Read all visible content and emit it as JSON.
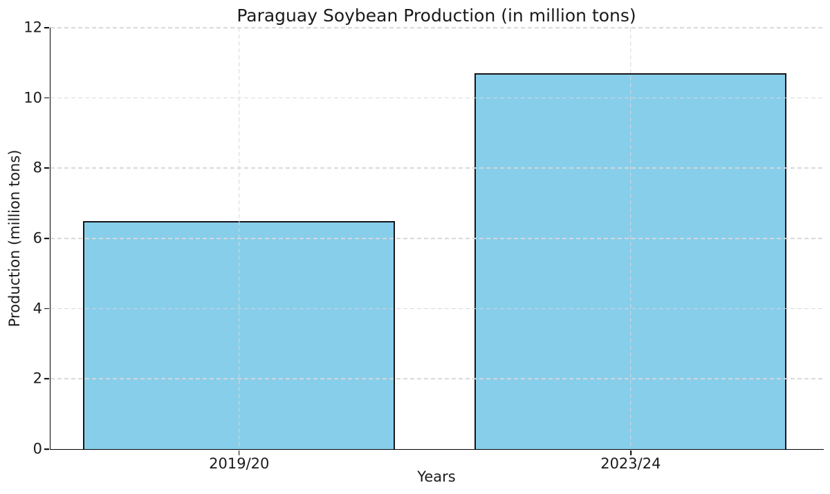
{
  "chart_data": {
    "type": "bar",
    "title": "Paraguay Soybean Production (in million tons)",
    "xlabel": "Years",
    "ylabel": "Production (million tons)",
    "categories": [
      "2019/20",
      "2023/24"
    ],
    "values": [
      6.5,
      10.7
    ],
    "ylim": [
      0,
      12
    ],
    "yticks": [
      0,
      2,
      4,
      6,
      8,
      10,
      12
    ],
    "grid": "dashed, horizontal and vertical, drawn over bars",
    "legend": "none",
    "colors": {
      "bar_fill": "#87CEEB",
      "bar_edge": "#151515",
      "grid": "#d7d7d7",
      "axis": "#000000",
      "text": "#1a1a1a",
      "background": "#ffffff"
    }
  }
}
